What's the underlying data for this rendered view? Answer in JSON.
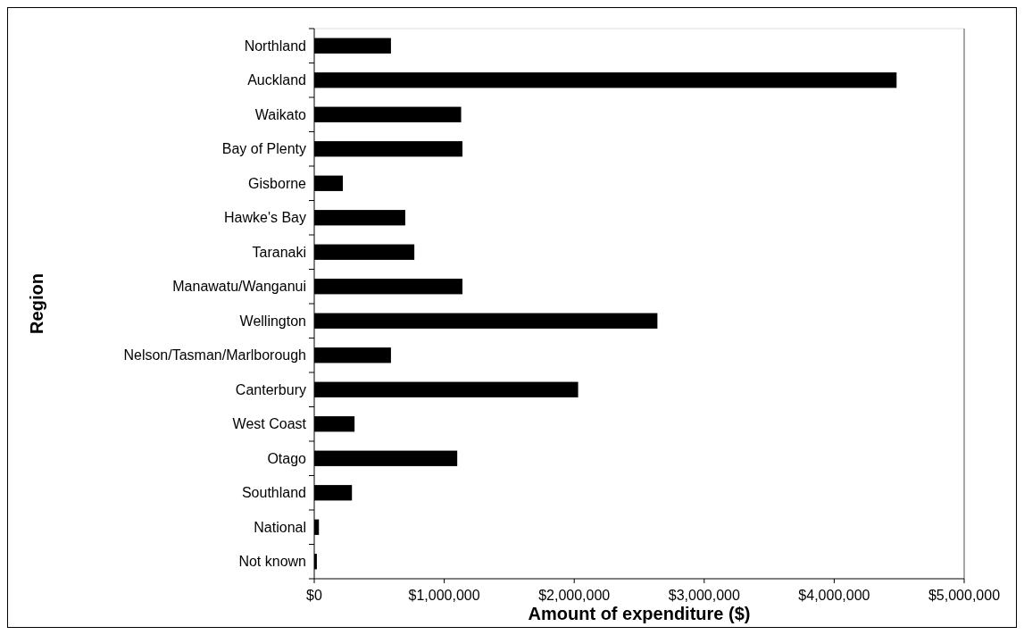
{
  "chart_data": {
    "type": "bar",
    "orientation": "horizontal",
    "xlabel": "Amount of expenditure ($)",
    "ylabel": "Region",
    "categories": [
      "Northland",
      "Auckland",
      "Waikato",
      "Bay of Plenty",
      "Gisborne",
      "Hawke's Bay",
      "Taranaki",
      "Manawatu/Wanganui",
      "Wellington",
      "Nelson/Tasman/Marlborough",
      "Canterbury",
      "West Coast",
      "Otago",
      "Southland",
      "National",
      "Not known"
    ],
    "values": [
      590000,
      4480000,
      1130000,
      1140000,
      220000,
      700000,
      770000,
      1140000,
      2640000,
      590000,
      2030000,
      310000,
      1100000,
      290000,
      36000,
      20000
    ],
    "color": "#000000",
    "xlim": [
      0,
      5000000
    ],
    "xticks": [
      {
        "value": 0,
        "label": "$0"
      },
      {
        "value": 1000000,
        "label": "$1,000,000"
      },
      {
        "value": 2000000,
        "label": "$2,000,000"
      },
      {
        "value": 3000000,
        "label": "$3,000,000"
      },
      {
        "value": 4000000,
        "label": "$4,000,000"
      },
      {
        "value": 5000000,
        "label": "$5,000,000"
      }
    ],
    "grid": false
  }
}
